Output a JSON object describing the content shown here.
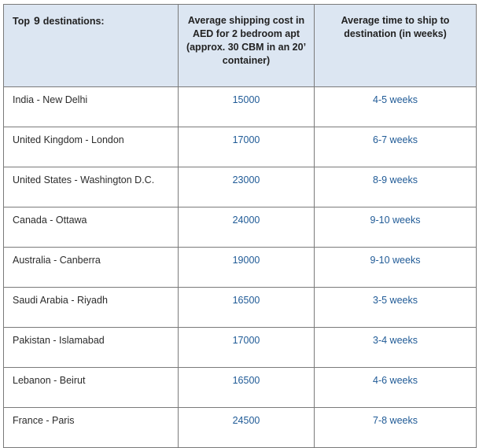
{
  "table": {
    "header": {
      "col1_prefix": "Top",
      "col1_number": "9",
      "col1_suffix": "destinations:",
      "col2": "Average shipping cost in AED for 2 bedroom apt (approx. 30 CBM in an 20’ container)",
      "col3": "Average time to ship to destination (in weeks)"
    },
    "rows": [
      {
        "destination": "India - New Delhi",
        "cost": "15000",
        "time": "4-5 weeks"
      },
      {
        "destination": "United Kingdom - London",
        "cost": "17000",
        "time": "6-7 weeks"
      },
      {
        "destination": "United States - Washington D.C.",
        "cost": "23000",
        "time": "8-9 weeks"
      },
      {
        "destination": "Canada - Ottawa",
        "cost": "24000",
        "time": "9-10 weeks"
      },
      {
        "destination": "Australia - Canberra",
        "cost": "19000",
        "time": "9-10 weeks"
      },
      {
        "destination": "Saudi Arabia - Riyadh",
        "cost": "16500",
        "time": "3-5 weeks"
      },
      {
        "destination": "Pakistan - Islamabad",
        "cost": "17000",
        "time": "3-4 weeks"
      },
      {
        "destination": "Lebanon - Beirut",
        "cost": "16500",
        "time": "4-6 weeks"
      },
      {
        "destination": "France - Paris",
        "cost": "24500",
        "time": "7-8 weeks"
      }
    ]
  },
  "colors": {
    "header_background": "#dce6f2",
    "value_text": "#1f5a96",
    "border": "#7a7a7a"
  }
}
